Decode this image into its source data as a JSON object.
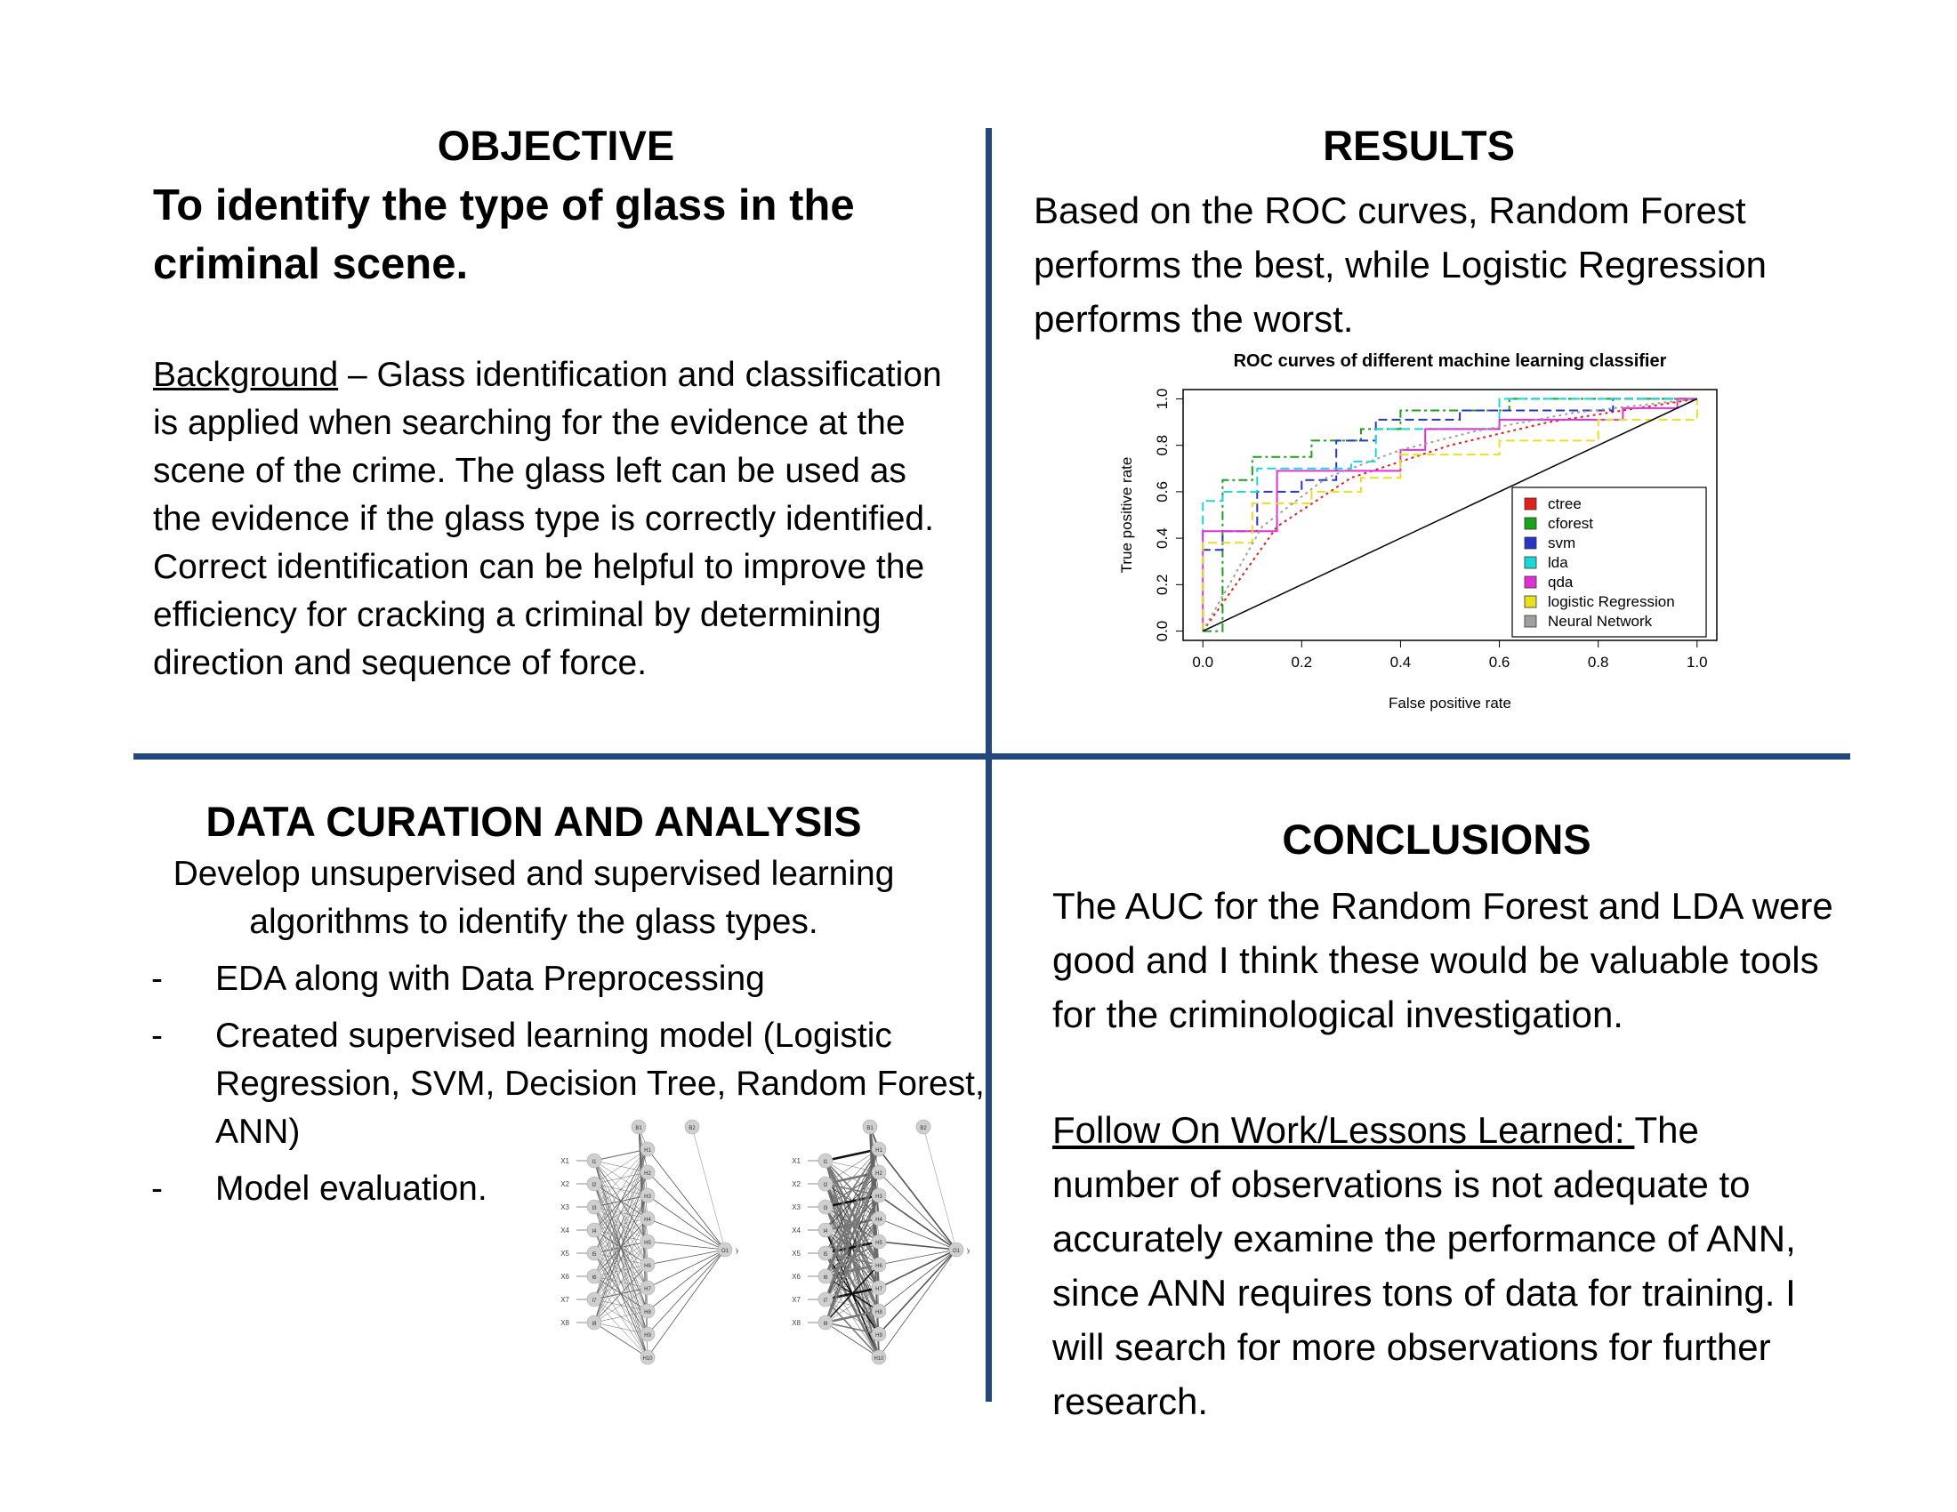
{
  "objective": {
    "heading": "OBJECTIVE",
    "statement": "To identify the type of glass in the criminal scene.",
    "background_label": "Background",
    "background_text": " – Glass identification and classification is applied when searching for the evidence at the scene of the crime. The glass left can be used as the evidence if the glass type is correctly identified. Correct identification can be helpful to improve the efficiency for cracking a criminal by determining direction and sequence of force."
  },
  "results": {
    "heading": "RESULTS",
    "text": "Based on the ROC curves, Random Forest performs the best, while Logistic Regression performs the worst."
  },
  "data_curation": {
    "heading": "DATA CURATION AND ANALYSIS",
    "intro": "Develop unsupervised and supervised learning algorithms to identify the glass types.",
    "bullet_mark": "-",
    "bullets": [
      "EDA along with Data Preprocessing",
      "Created supervised learning model (Logistic Regression, SVM, Decision Tree, Random Forest, ANN)",
      "Model evaluation."
    ]
  },
  "conclusions": {
    "heading": "CONCLUSIONS",
    "text": "The AUC for the Random Forest and LDA were good and I think these would be valuable tools for the criminological investigation.",
    "followon_label": "Follow On Work/Lessons Learned: ",
    "followon_text": "The number of observations is not adequate to accurately examine the performance of ANN, since ANN requires tons of data for training. I will search for more observations for further research."
  },
  "network": {
    "inputs": [
      "X1",
      "X2",
      "X3",
      "X4",
      "X5",
      "X6",
      "X7",
      "X8"
    ],
    "input_nodes": [
      "I1",
      "I2",
      "I3",
      "I4",
      "I5",
      "I6",
      "I7",
      "I8"
    ],
    "hidden_nodes": [
      "H1",
      "H2",
      "H3",
      "H4",
      "H5",
      "H6",
      "H7",
      "H8",
      "H9",
      "H10"
    ],
    "bias1": "B1",
    "bias2": "B2",
    "output_node": "O1",
    "output_label": "y"
  },
  "colors": {
    "divider": "#24487e"
  },
  "chart_data": {
    "type": "line",
    "title": "ROC curves of different machine learning classifier",
    "xlabel": "False positive rate",
    "ylabel": "True positive rate",
    "xlim": [
      0,
      1
    ],
    "ylim": [
      0,
      1
    ],
    "xticks": [
      "0.0",
      "0.2",
      "0.4",
      "0.6",
      "0.8",
      "1.0"
    ],
    "yticks": [
      "0.0",
      "0.2",
      "0.4",
      "0.6",
      "0.8",
      "1.0"
    ],
    "legend_position": "bottom-right",
    "grid": false,
    "series": [
      {
        "name": "ctree",
        "color": "#e0201a",
        "style": "dotted",
        "x": [
          0,
          0.15,
          0.3,
          0.5,
          0.7,
          1.0
        ],
        "y": [
          0,
          0.45,
          0.66,
          0.8,
          0.9,
          1.0
        ]
      },
      {
        "name": "cforest",
        "color": "#1aa21a",
        "style": "dashdot",
        "x": [
          0,
          0.04,
          0.04,
          0.1,
          0.1,
          0.22,
          0.22,
          0.32,
          0.32,
          0.4,
          0.4,
          0.62,
          0.62,
          1.0
        ],
        "y": [
          0,
          0,
          0.65,
          0.65,
          0.75,
          0.75,
          0.82,
          0.82,
          0.87,
          0.87,
          0.95,
          0.95,
          1.0,
          1.0
        ]
      },
      {
        "name": "svm",
        "color": "#2a35c8",
        "style": "dashed",
        "x": [
          0,
          0.0,
          0.04,
          0.04,
          0.11,
          0.11,
          0.2,
          0.2,
          0.27,
          0.27,
          0.35,
          0.35,
          0.52,
          0.52,
          0.83,
          0.83,
          1.0
        ],
        "y": [
          0,
          0.35,
          0.35,
          0.43,
          0.43,
          0.6,
          0.6,
          0.65,
          0.65,
          0.82,
          0.82,
          0.91,
          0.91,
          0.95,
          0.95,
          1.0,
          1.0
        ]
      },
      {
        "name": "lda",
        "color": "#1ad8d8",
        "style": "dashed",
        "x": [
          0,
          0.0,
          0.04,
          0.04,
          0.11,
          0.11,
          0.3,
          0.3,
          0.35,
          0.35,
          0.6,
          0.6,
          1.0
        ],
        "y": [
          0,
          0.56,
          0.56,
          0.6,
          0.6,
          0.7,
          0.7,
          0.73,
          0.73,
          0.87,
          0.87,
          1.0,
          1.0
        ],
        "note": ""
      },
      {
        "name": "qda",
        "color": "#e030d8",
        "style": "solid",
        "x": [
          0,
          0.0,
          0.15,
          0.15,
          0.4,
          0.4,
          0.45,
          0.45,
          0.6,
          0.6,
          0.85,
          0.85,
          0.96,
          0.96,
          1.0
        ],
        "y": [
          0,
          0.43,
          0.43,
          0.69,
          0.69,
          0.78,
          0.78,
          0.87,
          0.87,
          0.91,
          0.91,
          0.96,
          0.96,
          1.0,
          1.0
        ]
      },
      {
        "name": "logistic Regression",
        "color": "#e8e020",
        "style": "dashed",
        "x": [
          0,
          0.0,
          0.1,
          0.1,
          0.22,
          0.22,
          0.32,
          0.32,
          0.4,
          0.4,
          0.6,
          0.6,
          0.8,
          0.8,
          1.0,
          1.0
        ],
        "y": [
          0,
          0.38,
          0.38,
          0.55,
          0.55,
          0.6,
          0.6,
          0.66,
          0.66,
          0.76,
          0.76,
          0.82,
          0.82,
          0.91,
          0.91,
          1.0
        ]
      },
      {
        "name": "Neural Network",
        "color": "#a0a0a0",
        "style": "dotted",
        "x": [
          0,
          0.12,
          0.25,
          0.4,
          0.55,
          0.75,
          1.0
        ],
        "y": [
          0,
          0.45,
          0.66,
          0.78,
          0.86,
          0.94,
          1.0
        ]
      },
      {
        "name": "",
        "color": "#000000",
        "style": "solid",
        "x": [
          0,
          1
        ],
        "y": [
          0,
          1
        ]
      }
    ]
  }
}
